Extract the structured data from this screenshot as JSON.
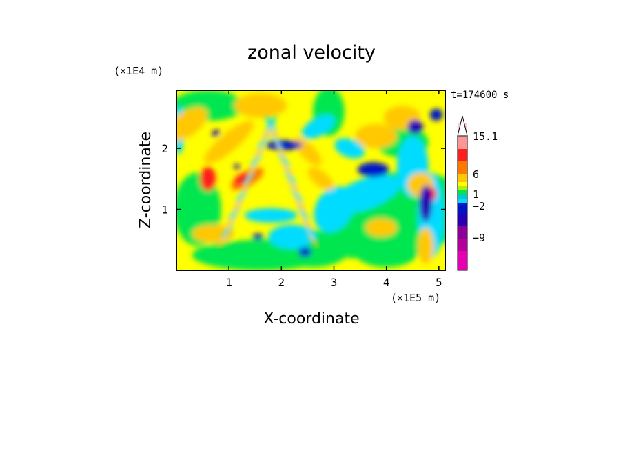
{
  "chart_data": {
    "type": "heatmap",
    "title": "zonal velocity",
    "xlabel": "X-coordinate",
    "ylabel": "Z-coordinate",
    "x_scale_label": "(×1E5 m)",
    "y_scale_label": "(×1E4 m)",
    "time_label": "t=174600 s",
    "xlim": [
      0,
      5.12
    ],
    "ylim": [
      0,
      2.95
    ],
    "x_ticks": [
      1,
      2,
      3,
      4,
      5
    ],
    "y_ticks": [
      1,
      2
    ],
    "colorbar": {
      "max_label": "15.1",
      "tick_labels": [
        "6",
        "1",
        "-2",
        "-9"
      ],
      "levels": [
        -15,
        -12,
        -9,
        -6,
        -4,
        -2,
        -1,
        0,
        1,
        2,
        4,
        6,
        9,
        12,
        15.1
      ],
      "colors": [
        "#e600b4",
        "#b4009b",
        "#8c0096",
        "#2800b4",
        "#0014c8",
        "#00dcff",
        "#00c8c8",
        "#00e650",
        "#b4f000",
        "#ffff00",
        "#ffc800",
        "#ff7800",
        "#ff1e1e",
        "#ff9696",
        "#ffcccc"
      ],
      "extend_max_color": "#ffffff"
    },
    "field_description": "contour-filled zonal velocity: near-zero yellow/green background, crossing bands of orange/red positive and cyan/blue negative values forming X-shaped wave patterns near x=1-2.5, a blue core around x=3.8 z=1.7, and strong alternating cells near x=4.7"
  }
}
